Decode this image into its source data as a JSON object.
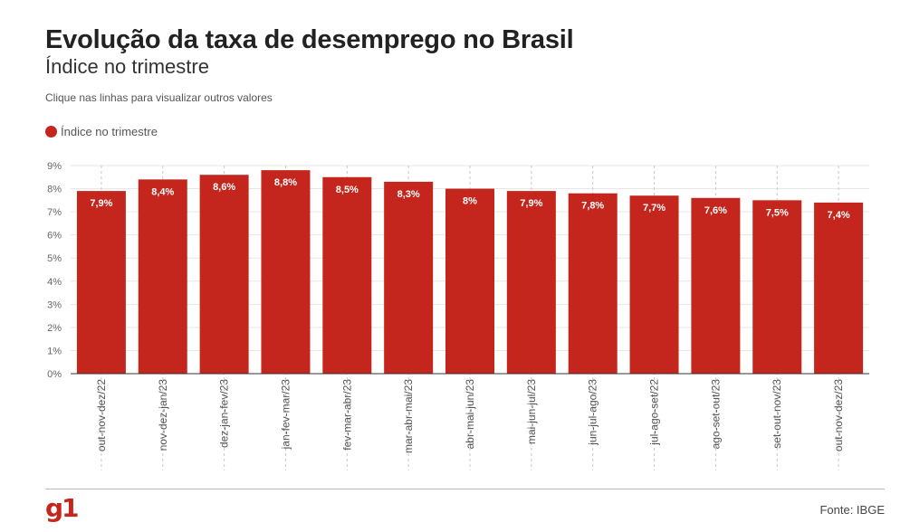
{
  "header": {
    "title": "Evolução da taxa de desemprego no Brasil",
    "subtitle": "Índice no trimestre",
    "hint": "Clique nas linhas para visualizar outros valores"
  },
  "legend": {
    "label": "Índice no trimestre",
    "color": "#c4261d"
  },
  "footer": {
    "logo": "g1",
    "source": "Fonte: IBGE",
    "brand_color": "#c4261d"
  },
  "chart_data": {
    "type": "bar",
    "categories": [
      "out-nov-dez/22",
      "nov-dez-jan/23",
      "dez-jan-fev/23",
      "jan-fev-mar/23",
      "fev-mar-abr/23",
      "mar-abr-mai/23",
      "abr-mai-jun/23",
      "mai-jun-jul/23",
      "jun-jul-ago/23",
      "jul-ago-set/22",
      "ago-set-out/23",
      "set-out-nov/23",
      "out-nov-dez/23"
    ],
    "values": [
      7.9,
      8.4,
      8.6,
      8.8,
      8.5,
      8.3,
      8.0,
      7.9,
      7.8,
      7.7,
      7.6,
      7.5,
      7.4
    ],
    "data_labels": [
      "7,9%",
      "8,4%",
      "8,6%",
      "8,8%",
      "8,5%",
      "8,3%",
      "8%",
      "7,9%",
      "7,8%",
      "7,7%",
      "7,6%",
      "7,5%",
      "7,4%"
    ],
    "yticks": [
      "0%",
      "1%",
      "2%",
      "3%",
      "4%",
      "5%",
      "6%",
      "7%",
      "8%",
      "9%"
    ],
    "ylim": [
      0,
      9
    ],
    "grid": true,
    "bar_color": "#c4261d"
  }
}
